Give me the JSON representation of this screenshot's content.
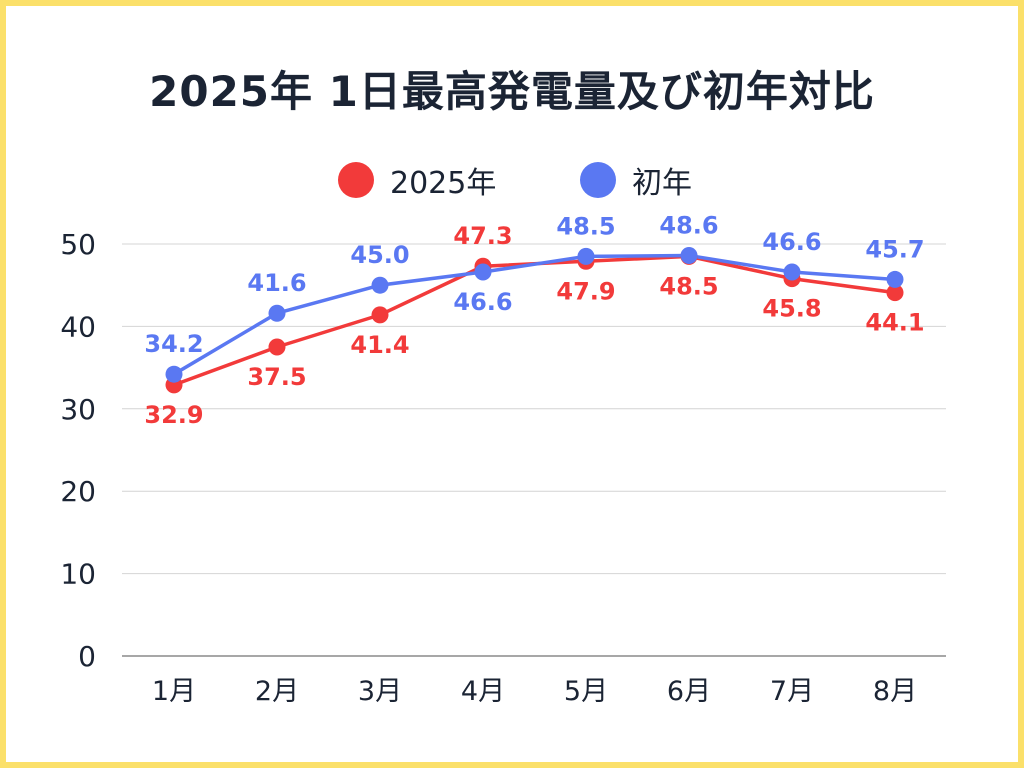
{
  "colors": {
    "series_2025": "#f23a3a",
    "series_first": "#5a78f2",
    "grid": "#d4d4d4",
    "axis": "#8a8a8a",
    "text": "#1b2434",
    "frame": "#fbe06a"
  },
  "chart_data": {
    "type": "line",
    "title": "2025年 1日最高発電量及び初年対比",
    "categories": [
      "1月",
      "2月",
      "3月",
      "4月",
      "5月",
      "6月",
      "7月",
      "8月"
    ],
    "series": [
      {
        "name": "2025年",
        "values": [
          32.9,
          37.5,
          41.4,
          47.3,
          47.9,
          48.5,
          45.8,
          44.1
        ]
      },
      {
        "name": "初年",
        "values": [
          34.2,
          41.6,
          45.0,
          46.6,
          48.5,
          48.6,
          46.6,
          45.7
        ]
      }
    ],
    "ylim": [
      0,
      50
    ],
    "yticks": [
      0,
      10,
      20,
      30,
      40,
      50
    ],
    "grid": true,
    "legend_position": "top-center"
  }
}
